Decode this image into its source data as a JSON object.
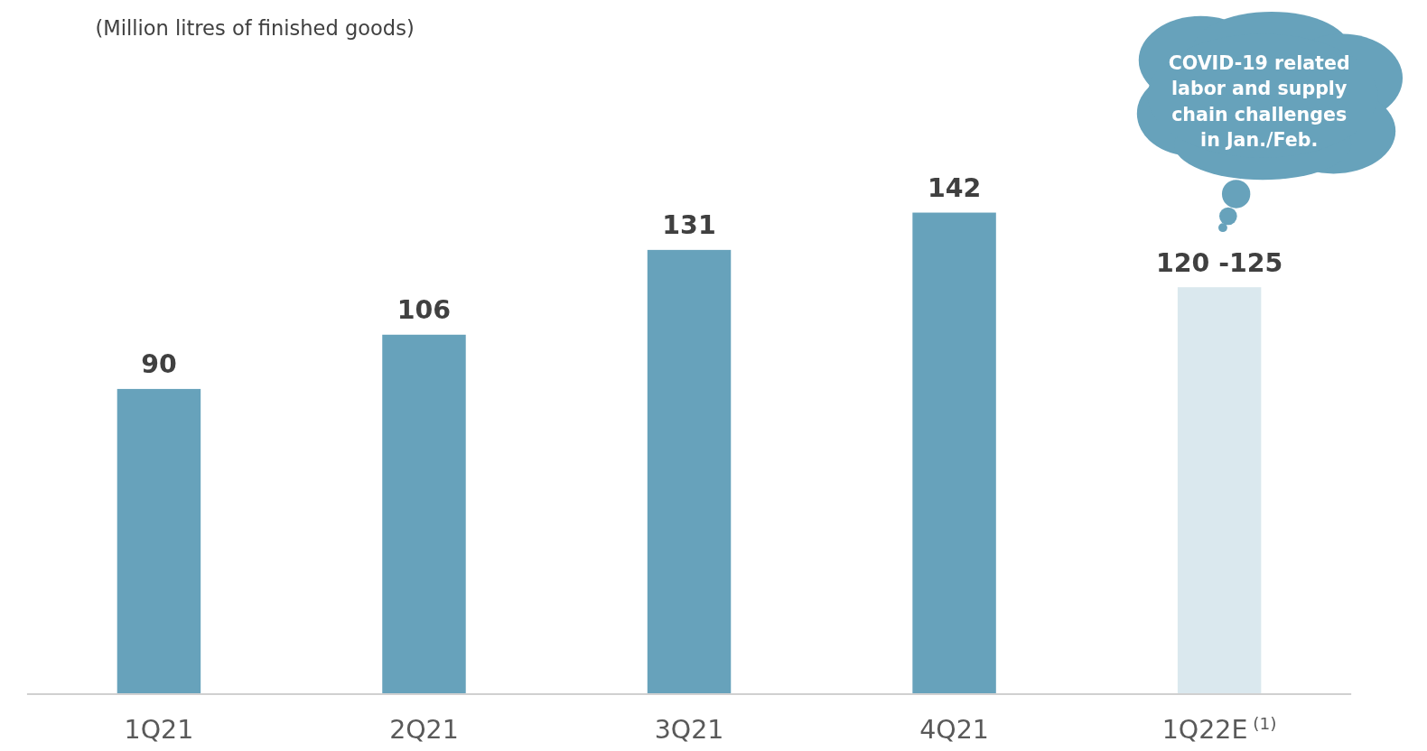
{
  "chart_data": {
    "type": "bar",
    "subtitle": "(Million litres of finished goods)",
    "categories": [
      "1Q21",
      "2Q21",
      "3Q21",
      "4Q21",
      "1Q22E$^{(1)}$"
    ],
    "values": [
      90,
      106,
      131,
      142,
      120
    ],
    "colors": [
      "#67a2bb",
      "#67a2bb",
      "#67a2bb",
      "#67a2bb",
      "#dae8ee"
    ],
    "value_labels": [
      "90",
      "106",
      "131",
      "142",
      "120 -125"
    ],
    "annotations": [
      "COVID-19 related labor and supply chain challenges in Jan./Feb."
    ]
  }
}
